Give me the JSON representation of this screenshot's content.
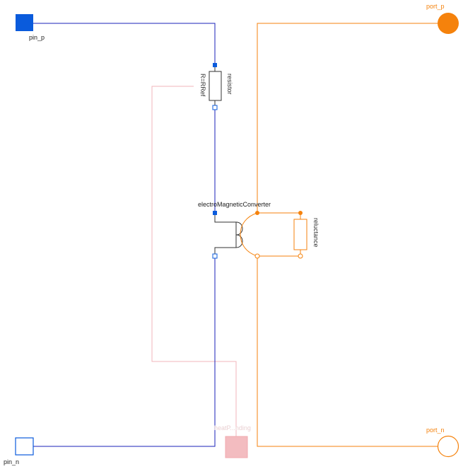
{
  "ports": {
    "pin_p": "pin_p",
    "pin_n": "pin_n",
    "port_p": "port_p",
    "port_n": "port_n"
  },
  "components": {
    "resistor_name": "resistor",
    "resistor_param": "R=RRef",
    "converter_name": "electroMagneticConverter",
    "reluctance_name": "reluctance",
    "heat_port_label": "heatP...nding"
  },
  "colors": {
    "electric_wire": "#1a22b8",
    "electric_pin": "#0a5bdc",
    "magnetic": "#f5820c",
    "heat_wire": "#f2b6bb",
    "heat_port_fill": "#f3bcc0",
    "component_outline": "#333333"
  }
}
